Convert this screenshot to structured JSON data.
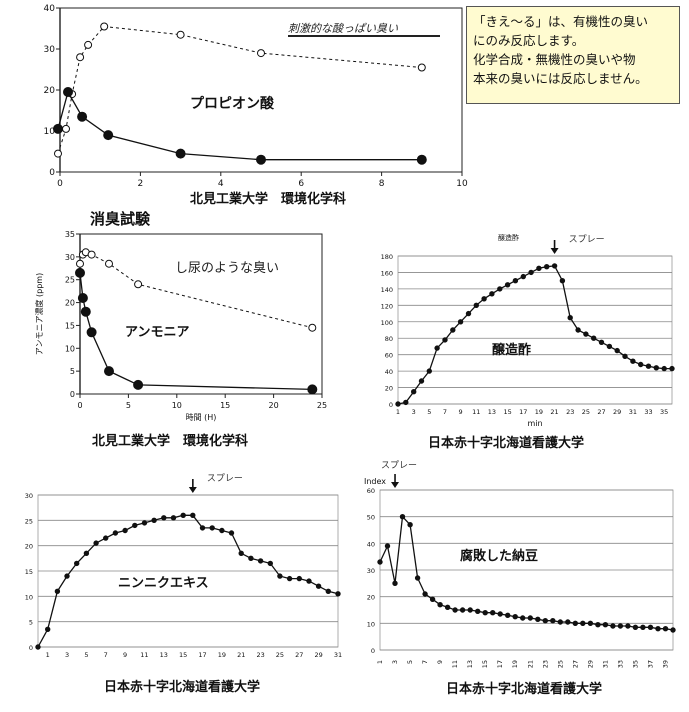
{
  "note": {
    "lines": [
      "「きえ～る」は、有機性の臭い",
      "にのみ反応します。",
      "化学合成・無機性の臭いや物",
      "本来の臭いには反応しません。"
    ]
  },
  "section_title": "消臭試験",
  "captions": {
    "kitami_1": "北見工業大学　環境化学科",
    "kitami_2": "北見工業大学　環境化学科",
    "jrc_1": "日本赤十字北海道看護大学",
    "jrc_2": "日本赤十字北海道看護大学",
    "jrc_3": "日本赤十字北海道看護大学"
  },
  "chart_data": [
    {
      "id": "propionic",
      "type": "line",
      "title": "プロピオン酸",
      "annotation": "刺激的な酸っぱい臭い",
      "xlim": [
        0,
        10
      ],
      "ylim": [
        0,
        40
      ],
      "xticks": [
        "0",
        "2",
        "4",
        "6",
        "8",
        "10"
      ],
      "yticks": [
        "0",
        "10",
        "20",
        "30",
        "40"
      ],
      "grid": false,
      "series": [
        {
          "style": "dashed",
          "marker": "open",
          "x": [
            -0.05,
            0.15,
            0.3,
            0.5,
            0.7,
            1.1,
            3.0,
            5.0,
            9.0
          ],
          "y": [
            4.5,
            10.5,
            19,
            28,
            31,
            35.5,
            33.5,
            29,
            25.5
          ]
        },
        {
          "style": "solid",
          "marker": "filled",
          "x": [
            -0.05,
            0.2,
            0.55,
            1.2,
            3.0,
            5.0,
            9.0
          ],
          "y": [
            10.5,
            19.5,
            13.5,
            9,
            4.5,
            3,
            3
          ]
        }
      ]
    },
    {
      "id": "ammonia",
      "type": "line",
      "title": "アンモニア",
      "annotation": "し尿のような臭い",
      "xlabel": "時間 (H)",
      "ylabel": "アンモニア濃度 (ppm)",
      "xlim": [
        0,
        25
      ],
      "ylim": [
        0,
        35
      ],
      "xticks": [
        "0",
        "5",
        "10",
        "15",
        "20",
        "25"
      ],
      "yticks": [
        "0",
        "5",
        "10",
        "15",
        "20",
        "25",
        "30",
        "35"
      ],
      "grid": false,
      "series": [
        {
          "style": "dashed",
          "marker": "open",
          "x": [
            0,
            0.3,
            0.6,
            1.2,
            3.0,
            6.0,
            24.0
          ],
          "y": [
            28.5,
            30.5,
            31,
            30.5,
            28.5,
            24,
            14.5
          ]
        },
        {
          "style": "solid",
          "marker": "filled",
          "x": [
            0,
            0.3,
            0.6,
            1.2,
            3.0,
            6.0,
            24.0
          ],
          "y": [
            26.5,
            21,
            18,
            13.5,
            5,
            2,
            1
          ]
        }
      ]
    },
    {
      "id": "vinegar",
      "type": "line",
      "title": "醸造酢",
      "top_label": "醸造酢",
      "spray": "スプレー",
      "spray_x": 21,
      "xlabel": "min",
      "xlim": [
        1,
        36
      ],
      "ylim": [
        0,
        180
      ],
      "xticks": [
        "1",
        "3",
        "5",
        "7",
        "9",
        "11",
        "13",
        "15",
        "17",
        "19",
        "21",
        "23",
        "25",
        "27",
        "29",
        "31",
        "33",
        "35"
      ],
      "yticks": [
        "0",
        "20",
        "40",
        "60",
        "80",
        "100",
        "120",
        "140",
        "160",
        "180"
      ],
      "grid": true,
      "series": [
        {
          "style": "solid",
          "marker": "filled",
          "x": [
            1,
            2,
            3,
            4,
            5,
            6,
            7,
            8,
            9,
            10,
            11,
            12,
            13,
            14,
            15,
            16,
            17,
            18,
            19,
            20,
            21,
            22,
            23,
            24,
            25,
            26,
            27,
            28,
            29,
            30,
            31,
            32,
            33,
            34,
            35,
            36
          ],
          "y": [
            0,
            2,
            15,
            28,
            40,
            68,
            78,
            90,
            100,
            110,
            120,
            128,
            134,
            140,
            145,
            150,
            155,
            160,
            165,
            167,
            168,
            150,
            105,
            90,
            85,
            80,
            75,
            70,
            65,
            58,
            52,
            48,
            46,
            44,
            43,
            43
          ]
        }
      ]
    },
    {
      "id": "garlic",
      "type": "line",
      "title": "ニンニクエキス",
      "spray": "スプレー",
      "spray_x": 16,
      "xlim": [
        0,
        31
      ],
      "ylim": [
        0,
        30
      ],
      "xticks": [
        "1",
        "3",
        "5",
        "7",
        "9",
        "11",
        "13",
        "15",
        "17",
        "19",
        "21",
        "23",
        "25",
        "27",
        "29",
        "31"
      ],
      "yticks": [
        "0",
        "5",
        "10",
        "15",
        "20",
        "25",
        "30"
      ],
      "grid": true,
      "series": [
        {
          "style": "solid",
          "marker": "filled",
          "x": [
            0,
            1,
            2,
            3,
            4,
            5,
            6,
            7,
            8,
            9,
            10,
            11,
            12,
            13,
            14,
            15,
            16,
            17,
            18,
            19,
            20,
            21,
            22,
            23,
            24,
            25,
            26,
            27,
            28,
            29,
            30,
            31
          ],
          "y": [
            0,
            3.5,
            11,
            14,
            16.5,
            18.5,
            20.5,
            21.5,
            22.5,
            23,
            24,
            24.5,
            25,
            25.5,
            25.5,
            26,
            26,
            23.5,
            23.5,
            23,
            22.5,
            18.5,
            17.5,
            17,
            16.5,
            14,
            13.5,
            13.5,
            13,
            12,
            11,
            10.5
          ]
        }
      ]
    },
    {
      "id": "natto",
      "type": "line",
      "title": "腐敗した納豆",
      "spray": "スプレー",
      "spray_x": 3,
      "index_label": "Index",
      "xlim": [
        1,
        40
      ],
      "ylim": [
        0,
        60
      ],
      "xticks": [
        "1",
        "3",
        "5",
        "7",
        "9",
        "11",
        "13",
        "15",
        "17",
        "19",
        "21",
        "23",
        "25",
        "27",
        "29",
        "31",
        "33",
        "35",
        "37",
        "39"
      ],
      "yticks": [
        "0",
        "10",
        "20",
        "30",
        "40",
        "50",
        "60"
      ],
      "grid": true,
      "series": [
        {
          "style": "solid",
          "marker": "filled",
          "x": [
            1,
            2,
            3,
            4,
            5,
            6,
            7,
            8,
            9,
            10,
            11,
            12,
            13,
            14,
            15,
            16,
            17,
            18,
            19,
            20,
            21,
            22,
            23,
            24,
            25,
            26,
            27,
            28,
            29,
            30,
            31,
            32,
            33,
            34,
            35,
            36,
            37,
            38,
            39,
            40
          ],
          "y": [
            33,
            39,
            25,
            50,
            47,
            27,
            21,
            19,
            17,
            16,
            15,
            15,
            15,
            14.5,
            14,
            14,
            13.5,
            13,
            12.5,
            12,
            12,
            11.5,
            11,
            11,
            10.5,
            10.5,
            10,
            10,
            10,
            9.5,
            9.5,
            9,
            9,
            9,
            8.5,
            8.5,
            8.5,
            8,
            8,
            7.5
          ]
        }
      ]
    }
  ]
}
